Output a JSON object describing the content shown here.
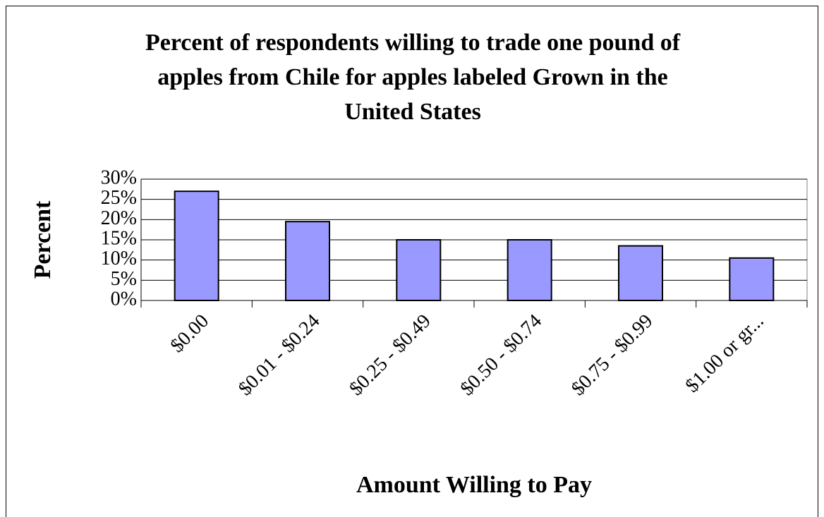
{
  "chart_data": {
    "type": "bar",
    "title": [
      "Percent of respondents willing to trade one pound of",
      "apples from Chile for apples labeled Grown in the",
      "United States"
    ],
    "x_label": "Amount Willing to Pay",
    "y_label": "Percent",
    "categories": [
      "$0.00",
      "$0.01 - $0.24",
      "$0.25 - $0.49",
      "$0.50 - $0.74",
      "$0.75 - $0.99",
      "$1.00 or gr..."
    ],
    "values": [
      27,
      19.5,
      15,
      15,
      13.5,
      10.5
    ],
    "color": "#9999ff",
    "ylim": [
      0,
      30
    ],
    "yticks": [
      {
        "value": 0,
        "label": "0%"
      },
      {
        "value": 5,
        "label": "5%"
      },
      {
        "value": 10,
        "label": "10%"
      },
      {
        "value": 15,
        "label": "15%"
      },
      {
        "value": 20,
        "label": "20%"
      },
      {
        "value": 25,
        "label": "25%"
      },
      {
        "value": 30,
        "label": "30%"
      }
    ],
    "grid": true
  }
}
